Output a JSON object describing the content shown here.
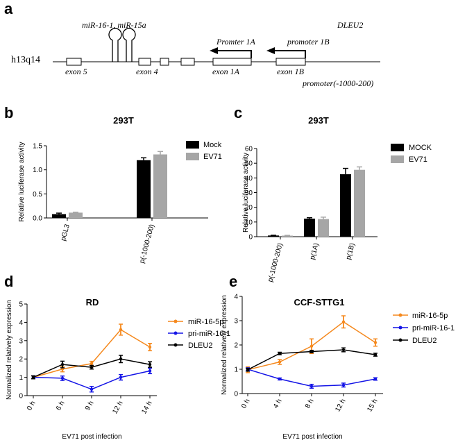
{
  "panel_a": {
    "letter": "a",
    "chromosome": "h13q14",
    "mirna_label": "miR-16-1, miR-15a",
    "gene_label": "DLEU2",
    "exon5": "exon 5",
    "exon4": "exon 4",
    "exon1A": "exon 1A",
    "exon1B": "exon 1B",
    "promoter1A": "Promter 1A",
    "promoter1B": "promoter 1B",
    "promoter_region": "promoter(-1000-200)"
  },
  "chart_data": [
    {
      "id": "b",
      "letter": "b",
      "type": "bar",
      "title": "293T",
      "ylabel": "Relative luciferase activity",
      "xlabel": "",
      "ylim": [
        0,
        1.5
      ],
      "yticks": [
        "0.0",
        "0.5",
        "1.0",
        "1.5"
      ],
      "categories": [
        "pGL3",
        "p(-1000-200)"
      ],
      "series": [
        {
          "name": "Mock",
          "color": "#000000",
          "values": [
            0.08,
            1.2
          ],
          "errors": [
            0.02,
            0.05
          ]
        },
        {
          "name": "EV71",
          "color": "#a6a6a6",
          "values": [
            0.11,
            1.32
          ],
          "errors": [
            0.01,
            0.06
          ]
        }
      ],
      "legend": "top-right"
    },
    {
      "id": "c",
      "letter": "c",
      "type": "bar",
      "title": "293T",
      "ylabel": "Relative luciferase activity",
      "xlabel": "",
      "ylim": [
        0,
        60
      ],
      "yticks": [
        "0",
        "10",
        "20",
        "30",
        "40",
        "50",
        "60"
      ],
      "categories": [
        "p(-1000-200)",
        "p(1A)",
        "p(1B)"
      ],
      "series": [
        {
          "name": "MOCK",
          "color": "#000000",
          "values": [
            0.8,
            12.3,
            42.5
          ],
          "errors": [
            0.2,
            0.6,
            4.0
          ]
        },
        {
          "name": "EV71",
          "color": "#a6a6a6",
          "values": [
            0.7,
            12.0,
            45.5
          ],
          "errors": [
            0.2,
            1.3,
            2.0
          ]
        }
      ],
      "legend": "top-right"
    },
    {
      "id": "d",
      "letter": "d",
      "type": "line",
      "title": "RD",
      "ylabel": "Normalized relatively expression",
      "xlabel": "EV71 post infection",
      "ylim": [
        0,
        5
      ],
      "yticks": [
        "0",
        "1",
        "2",
        "3",
        "4",
        "5"
      ],
      "categories": [
        "0 h",
        "6 h",
        "9 h",
        "12 h",
        "14 h"
      ],
      "series": [
        {
          "name": "miR-16-5p",
          "color": "#f5891e",
          "values": [
            1.0,
            1.45,
            1.75,
            3.6,
            2.65
          ],
          "errors": [
            0.08,
            0.15,
            0.12,
            0.3,
            0.2
          ]
        },
        {
          "name": "pri-miR-16-1",
          "color": "#1414e6",
          "values": [
            1.0,
            0.95,
            0.35,
            1.0,
            1.35
          ],
          "errors": [
            0.08,
            0.12,
            0.15,
            0.15,
            0.15
          ]
        },
        {
          "name": "DLEU2",
          "color": "#000000",
          "values": [
            1.0,
            1.7,
            1.55,
            2.0,
            1.7
          ],
          "errors": [
            0.08,
            0.18,
            0.1,
            0.2,
            0.15
          ]
        }
      ],
      "legend": "top-right"
    },
    {
      "id": "e",
      "letter": "e",
      "type": "line",
      "title": "CCF-STTG1",
      "ylabel": "Normalized relatively expression",
      "xlabel": "EV71 post infection",
      "ylim": [
        0,
        4
      ],
      "yticks": [
        "0",
        "1",
        "2",
        "3",
        "4"
      ],
      "categories": [
        "0 h",
        "4 h",
        "8 h",
        "12 h",
        "15 h"
      ],
      "series": [
        {
          "name": "miR-16-5p",
          "color": "#f5891e",
          "values": [
            0.98,
            1.3,
            1.95,
            2.95,
            2.1
          ],
          "errors": [
            0.12,
            0.1,
            0.3,
            0.25,
            0.15
          ]
        },
        {
          "name": "pri-miR-16-1",
          "color": "#1414e6",
          "values": [
            1.0,
            0.6,
            0.3,
            0.35,
            0.6
          ],
          "errors": [
            0.06,
            0.04,
            0.08,
            0.08,
            0.05
          ]
        },
        {
          "name": "DLEU2",
          "color": "#000000",
          "values": [
            0.98,
            1.65,
            1.73,
            1.8,
            1.6
          ],
          "errors": [
            0.06,
            0.05,
            0.05,
            0.08,
            0.06
          ]
        }
      ],
      "legend": "top-right"
    }
  ]
}
